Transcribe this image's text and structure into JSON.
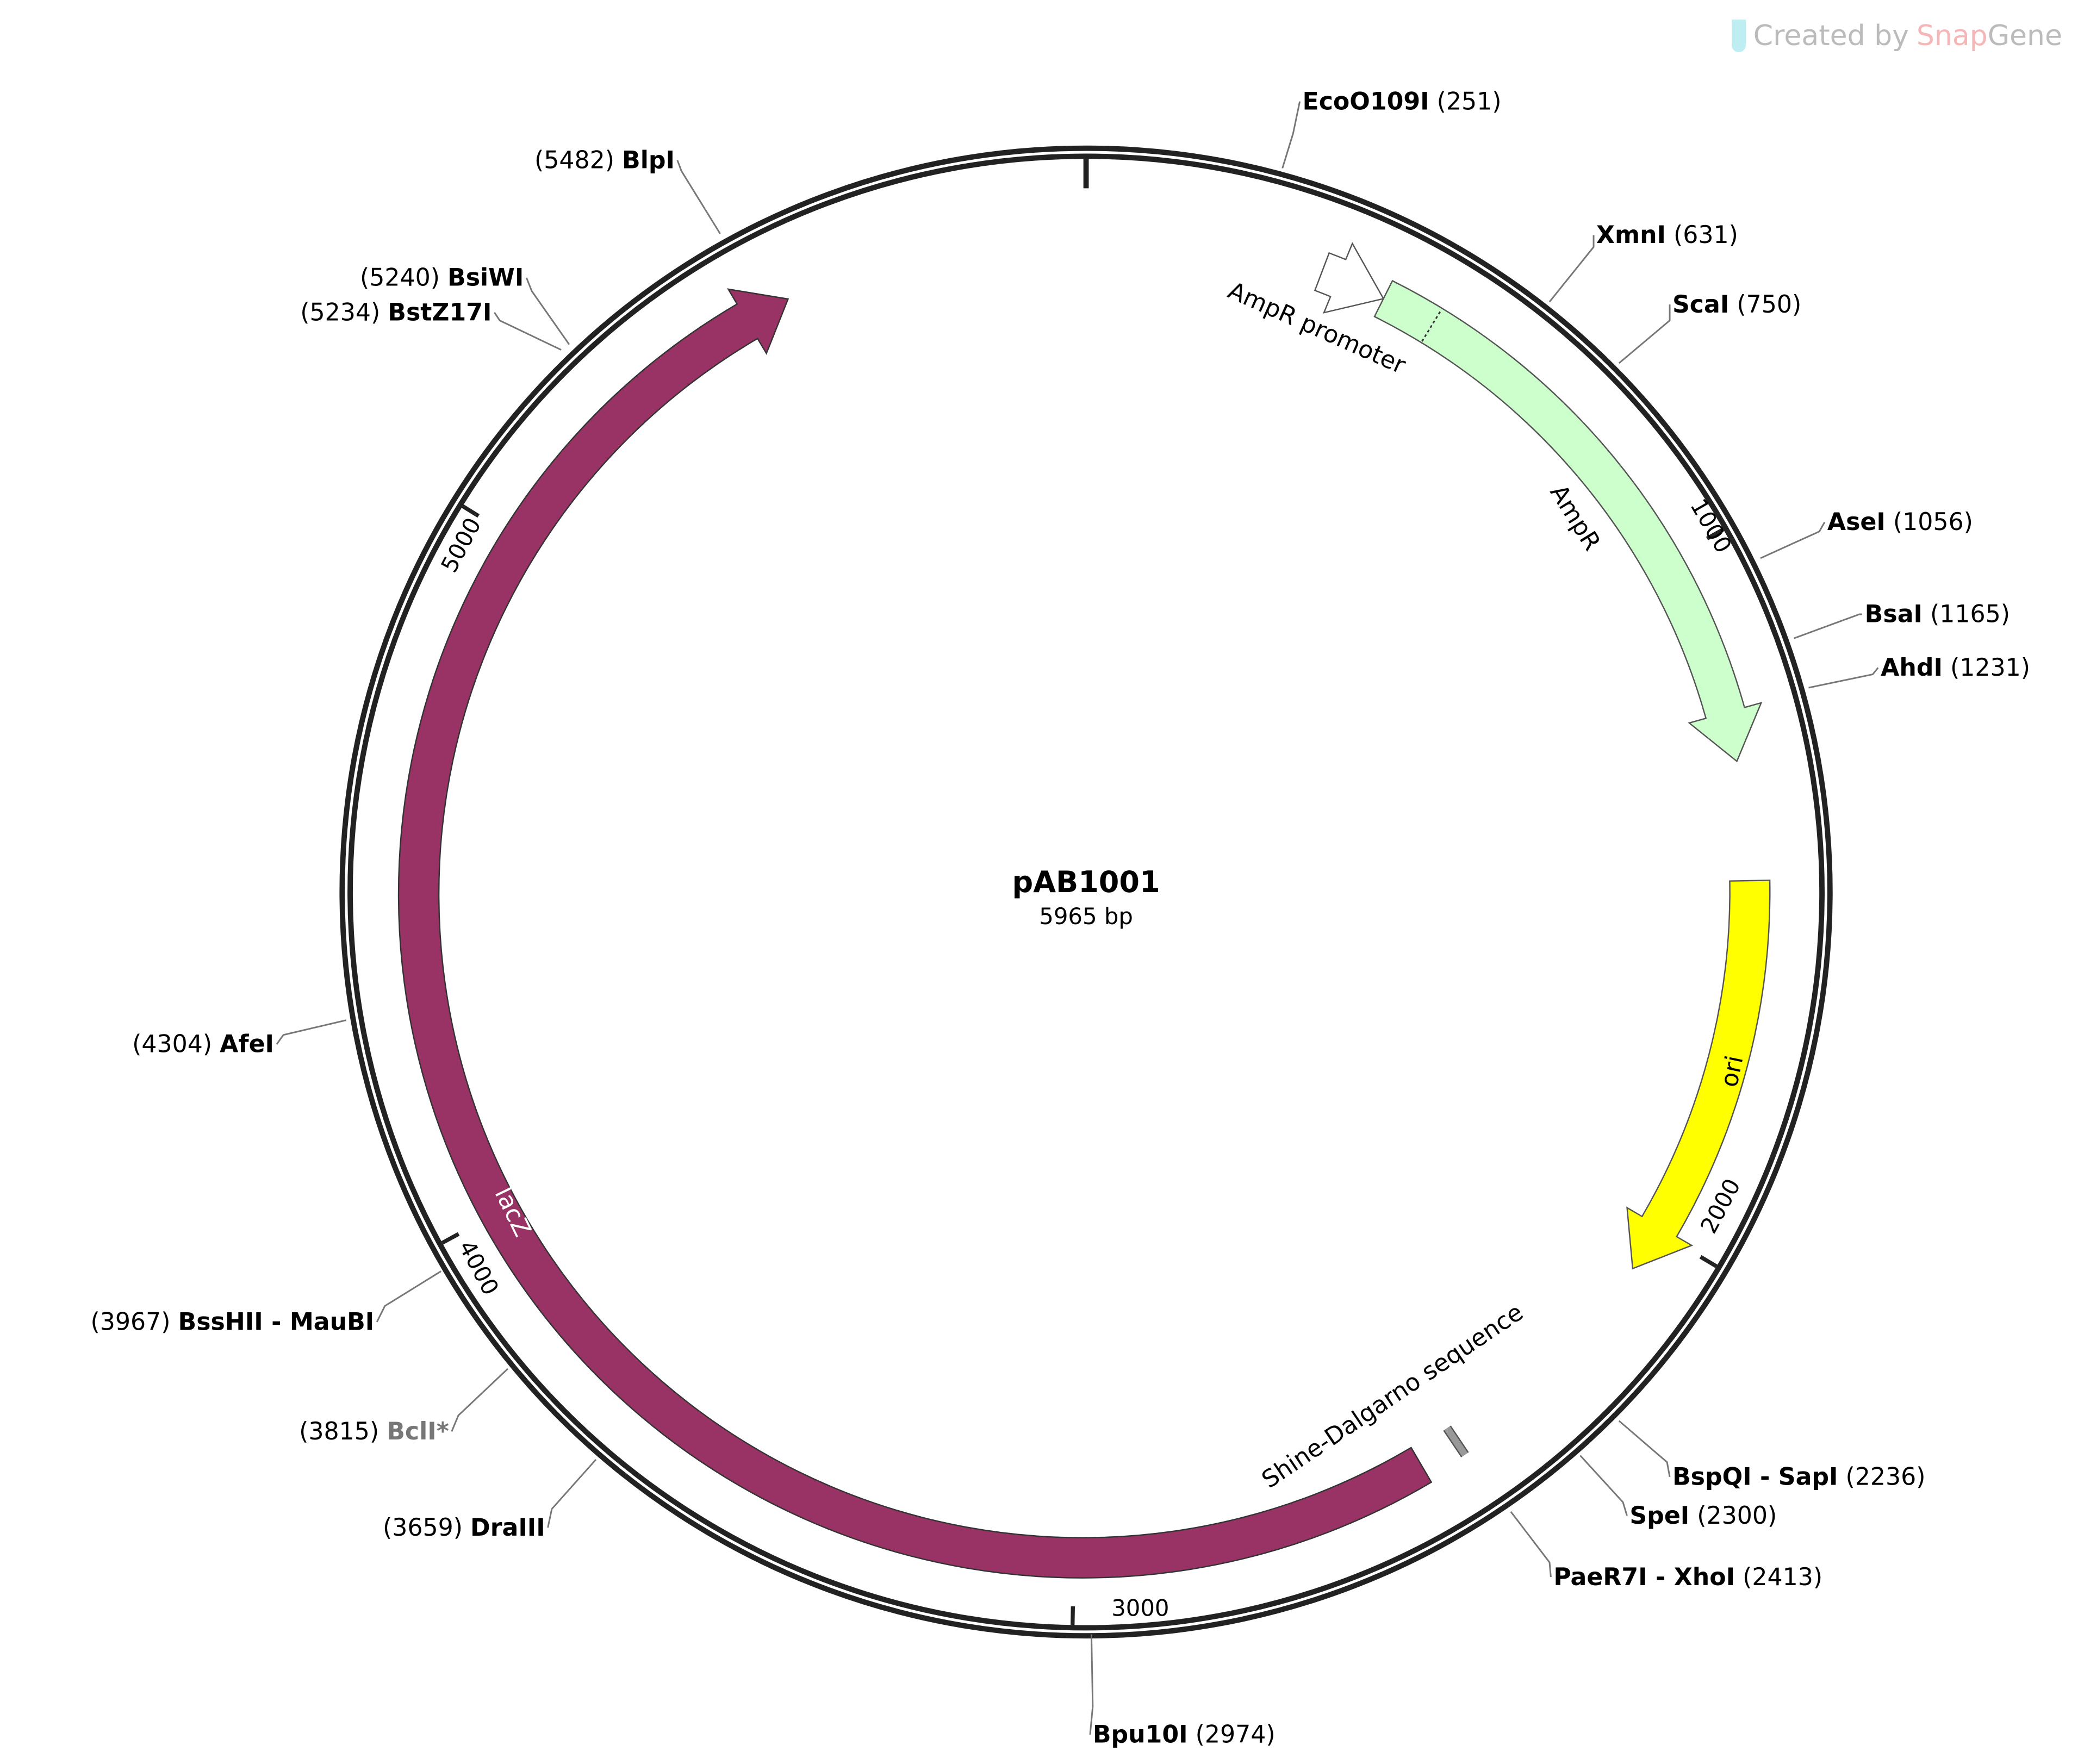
{
  "watermark": {
    "prefix": "Created by",
    "brand_a": "Snap",
    "brand_b": "Gene"
  },
  "plasmid": {
    "name": "pAB1001",
    "length_label": "5965 bp",
    "length": 5965
  },
  "ticks": [
    {
      "bp": 1000,
      "label": "1000"
    },
    {
      "bp": 2000,
      "label": "2000"
    },
    {
      "bp": 3000,
      "label": "3000"
    },
    {
      "bp": 4000,
      "label": "4000"
    },
    {
      "bp": 5000,
      "label": "5000"
    }
  ],
  "features": [
    {
      "name": "AmpR promoter",
      "start": 345,
      "end": 441,
      "color": "#ffffff",
      "direction": "forward"
    },
    {
      "name": "AmpR",
      "start": 441,
      "end": 1303,
      "color": "#ccffcc",
      "direction": "forward"
    },
    {
      "name": "ori",
      "start": 1475,
      "end": 2064,
      "color": "#ffff00",
      "direction": "forward"
    },
    {
      "name": "Shine-Dalgarno sequence",
      "start": 2420,
      "end": 2432,
      "color": "#999999",
      "direction": "none"
    },
    {
      "name": "lacZ",
      "start": 2480,
      "end": 5523,
      "color": "#993366",
      "direction": "reverse"
    }
  ],
  "enzymes": [
    {
      "name": "EcoO109I",
      "position": "(251)",
      "unique": true
    },
    {
      "name": "XmnI",
      "position": "(631)",
      "unique": true
    },
    {
      "name": "ScaI",
      "position": "(750)",
      "unique": true
    },
    {
      "name": "AseI",
      "position": "(1056)",
      "unique": true
    },
    {
      "name": "BsaI",
      "position": "(1165)",
      "unique": true
    },
    {
      "name": "AhdI",
      "position": "(1231)",
      "unique": true
    },
    {
      "name": "BspQI - SapI",
      "position": "(2236)",
      "unique": true
    },
    {
      "name": "SpeI",
      "position": "(2300)",
      "unique": true
    },
    {
      "name": "PaeR7I - XhoI",
      "position": "(2413)",
      "unique": true
    },
    {
      "name": "Bpu10I",
      "position": "(2974)",
      "unique": true
    },
    {
      "name": "DraIII",
      "position": "(3659)",
      "unique": true
    },
    {
      "name": "BclI*",
      "position": "(3815)",
      "unique": false
    },
    {
      "name": "BssHII - MauBI",
      "position": "(3967)",
      "unique": true
    },
    {
      "name": "AfeI",
      "position": "(4304)",
      "unique": true
    },
    {
      "name": "BstZ17I",
      "position": "(5234)",
      "unique": true
    },
    {
      "name": "BsiWI",
      "position": "(5240)",
      "unique": true
    },
    {
      "name": "BlpI",
      "position": "(5482)",
      "unique": true
    }
  ]
}
